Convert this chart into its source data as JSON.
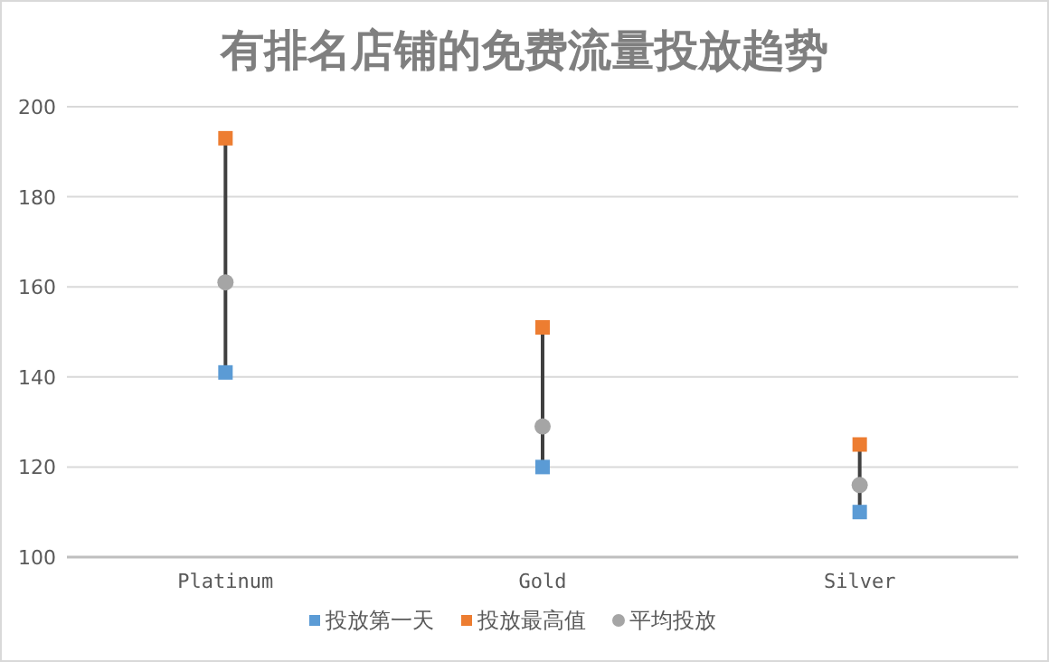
{
  "chart_data": {
    "type": "scatter",
    "title": "有排名店铺的免费流量投放趋势",
    "categories": [
      "Platinum",
      "Gold",
      "Silver"
    ],
    "series": [
      {
        "name": "投放第一天",
        "color": "#5b9bd5",
        "marker": "square",
        "values": [
          141,
          120,
          110
        ]
      },
      {
        "name": "投放最高值",
        "color": "#ed7d31",
        "marker": "square",
        "values": [
          193,
          151,
          125
        ]
      },
      {
        "name": "平均投放",
        "color": "#a5a5a5",
        "marker": "circle",
        "values": [
          161,
          129,
          116
        ]
      }
    ],
    "ylim": [
      100,
      200
    ],
    "yticks": [
      100,
      120,
      140,
      160,
      180,
      200
    ],
    "grid": "y",
    "legend": "bottom"
  }
}
